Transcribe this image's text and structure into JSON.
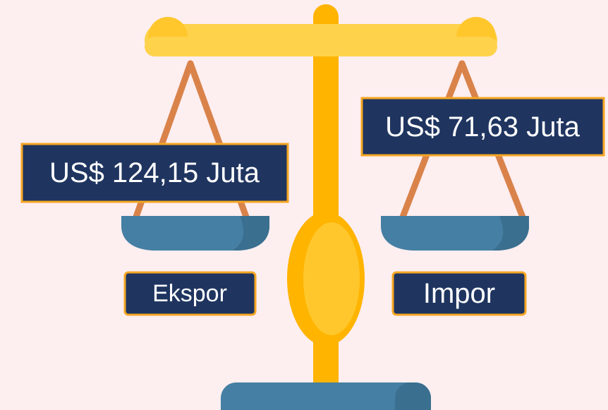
{
  "left": {
    "value_label": "US$ 124,15 Juta",
    "label": "Ekspor"
  },
  "right": {
    "value_label": "US$ 71,63 Juta",
    "label": "Impor"
  }
}
